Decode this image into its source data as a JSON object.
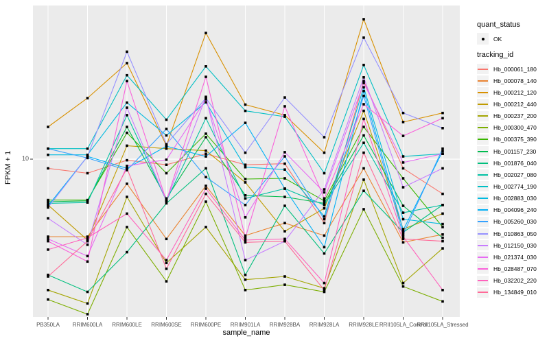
{
  "legend": {
    "quant_status_title": "quant_status",
    "quant_status_value": "OK",
    "tracking_title": "tracking_id"
  },
  "chart_data": {
    "type": "line",
    "title": "",
    "xlabel": "sample_name",
    "ylabel": "FPKM + 1",
    "y_scale": "log10",
    "y_tick_label": "10",
    "y_ticks": [
      10
    ],
    "ylim": [
      2.4,
      41
    ],
    "grid": "vertical-category-lines plus horizontal line at 10",
    "legend_position": "right",
    "panel_bg": "#EBEBEB",
    "grid_color": "#FFFFFF",
    "point_color": "#000000",
    "tick_color": "#333333",
    "categories": [
      "PB350LA",
      "RRIM600LA",
      "RRIM600LE",
      "RRIM600SE",
      "RRIM600PE",
      "RRIM901LA",
      "RRIM928BA",
      "RRIM928LA",
      "RRIM928LE",
      "RRII105LA_Control",
      "RRII105LA_Stressed"
    ],
    "series": [
      {
        "name": "Hb_000061_180",
        "color": "#F8766D",
        "values": [
          9.2,
          8.8,
          9.9,
          9.5,
          10.5,
          9.5,
          9.6,
          5.6,
          20.3,
          9.2,
          7.3
        ]
      },
      {
        "name": "Hb_000078_140",
        "color": "#EA8331",
        "values": [
          4.95,
          4.95,
          8.0,
          4.85,
          7.85,
          5.0,
          5.6,
          5.0,
          9.2,
          4.7,
          5.05
        ]
      },
      {
        "name": "Hb_000212_120",
        "color": "#D89000",
        "values": [
          13.4,
          17.4,
          23.9,
          11.3,
          31.4,
          16.4,
          14.9,
          10.6,
          35.6,
          14.0,
          15.2
        ]
      },
      {
        "name": "Hb_000212_440",
        "color": "#C09B00",
        "values": [
          6.6,
          4.8,
          11.3,
          11.0,
          10.8,
          8.1,
          5.2,
          6.4,
          15.5,
          5.3,
          6.1
        ]
      },
      {
        "name": "Hb_000237_200",
        "color": "#A3A500",
        "values": [
          3.05,
          2.7,
          7.1,
          3.9,
          5.4,
          3.35,
          3.45,
          3.1,
          8.3,
          3.25,
          4.45
        ]
      },
      {
        "name": "Hb_000300_470",
        "color": "#7CAE00",
        "values": [
          2.8,
          2.45,
          5.4,
          3.3,
          6.8,
          3.05,
          3.2,
          3.0,
          6.35,
          3.15,
          2.75
        ]
      },
      {
        "name": "Hb_000375_390",
        "color": "#39B600",
        "values": [
          6.9,
          6.9,
          12.7,
          8.8,
          12.6,
          8.35,
          8.4,
          6.85,
          13.4,
          8.4,
          5.4
        ]
      },
      {
        "name": "Hb_001157_230",
        "color": "#00BB4E",
        "values": [
          6.8,
          6.85,
          13.4,
          7.0,
          12.2,
          7.2,
          7.1,
          6.7,
          12.4,
          6.55,
          4.9
        ]
      },
      {
        "name": "Hb_001876_040",
        "color": "#00BF7D",
        "values": [
          3.5,
          3.0,
          4.3,
          6.7,
          9.2,
          3.5,
          6.55,
          4.25,
          7.5,
          5.15,
          6.6
        ]
      },
      {
        "name": "Hb_002027_080",
        "color": "#00C1A3",
        "values": [
          6.7,
          6.75,
          14.9,
          6.85,
          14.5,
          7.0,
          7.65,
          6.6,
          11.6,
          6.15,
          6.6
        ]
      },
      {
        "name": "Hb_002774_190",
        "color": "#00BFC4",
        "values": [
          11.0,
          11.0,
          21.4,
          14.3,
          23.2,
          15.5,
          14.7,
          8.8,
          23.5,
          10.25,
          10.5
        ]
      },
      {
        "name": "Hb_002883_030",
        "color": "#00BAE0",
        "values": [
          10.4,
          10.4,
          16.7,
          12.4,
          16.75,
          9.3,
          9.1,
          5.95,
          19.2,
          5.8,
          5.55
        ]
      },
      {
        "name": "Hb_004096_240",
        "color": "#00B0F6",
        "values": [
          6.55,
          10.25,
          9.2,
          11.25,
          10.25,
          13.9,
          7.65,
          4.5,
          18.55,
          5.25,
          10.75
        ]
      },
      {
        "name": "Hb_005260_030",
        "color": "#35A2FF",
        "values": [
          11.0,
          10.1,
          9.05,
          13.15,
          8.5,
          6.6,
          10.25,
          5.8,
          17.75,
          5.05,
          11.0
        ]
      },
      {
        "name": "Hb_010863_050",
        "color": "#9590FF",
        "values": [
          6.45,
          10.25,
          26.5,
          11.45,
          17.4,
          10.6,
          17.5,
          12.2,
          30.1,
          15.2,
          13.25
        ]
      },
      {
        "name": "Hb_012150_030",
        "color": "#C77CFF",
        "values": [
          5.85,
          4.6,
          15.95,
          6.85,
          17.6,
          4.0,
          4.75,
          7.6,
          21.0,
          7.75,
          9.2
        ]
      },
      {
        "name": "Hb_021374_030",
        "color": "#E76BF3",
        "values": [
          4.85,
          4.15,
          9.4,
          9.95,
          17.2,
          5.9,
          10.65,
          7.4,
          19.95,
          9.7,
          10.5
        ]
      },
      {
        "name": "Hb_028487_070",
        "color": "#FA62DB",
        "values": [
          4.75,
          3.95,
          20.3,
          6.85,
          21.1,
          4.9,
          16.15,
          7.0,
          16.45,
          12.35,
          14.5
        ]
      },
      {
        "name": "Hb_032202_220",
        "color": "#FF62BC",
        "values": [
          4.4,
          4.9,
          6.1,
          4.0,
          7.65,
          4.8,
          4.85,
          3.25,
          14.4,
          4.95,
          3.05
        ]
      },
      {
        "name": "Hb_134849_010",
        "color": "#FF6A98",
        "values": [
          3.45,
          4.75,
          9.2,
          3.7,
          7.3,
          4.7,
          4.75,
          3.05,
          10.6,
          4.85,
          4.75
        ]
      }
    ]
  }
}
